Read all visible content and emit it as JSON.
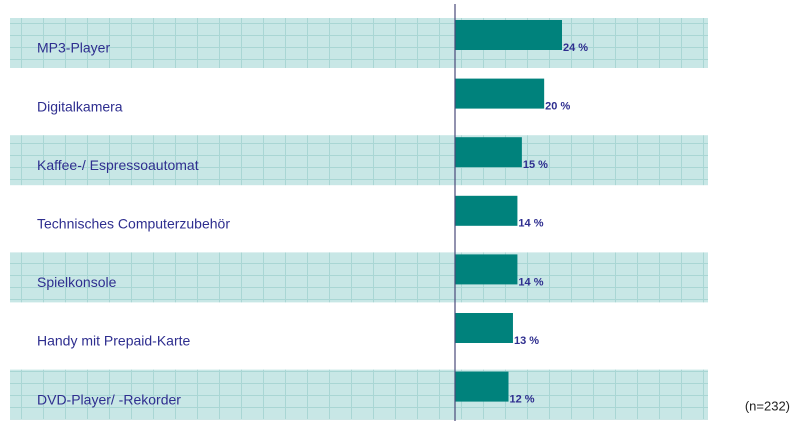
{
  "chart_data": {
    "type": "bar",
    "orientation": "horizontal",
    "categories": [
      "MP3-Player",
      "Digitalkamera",
      "Kaffee-/ Espressoautomat",
      "Technisches Computerzubehör",
      "Spielkonsole",
      "Handy mit Prepaid-Karte",
      "DVD-Player/ -Rekorder"
    ],
    "values": [
      24,
      20,
      15,
      14,
      14,
      13,
      12
    ],
    "value_labels": [
      "24 %",
      "20 %",
      "15 %",
      "14 %",
      "14 %",
      "13 %",
      "12 %"
    ],
    "color": "#00827c",
    "footnote": "(n=232)"
  }
}
